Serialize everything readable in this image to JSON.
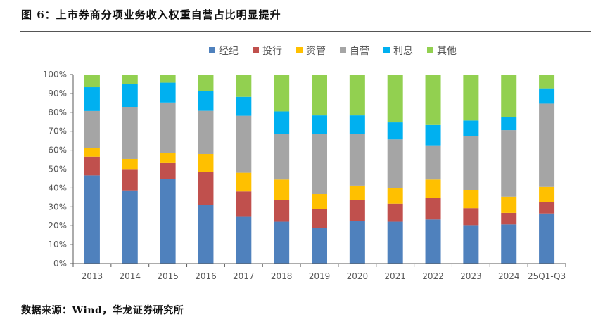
{
  "figure": {
    "title": "图 6：上市券商分项业务收入权重自营占比明显提升",
    "source": "数据来源：Wind，华龙证券研究所"
  },
  "chart_data": {
    "type": "bar",
    "stacked": true,
    "percent": true,
    "title": "",
    "xlabel": "",
    "ylabel": "",
    "ylim": [
      0,
      100
    ],
    "yticks": [
      "0%",
      "10%",
      "20%",
      "30%",
      "40%",
      "50%",
      "60%",
      "70%",
      "80%",
      "90%",
      "100%"
    ],
    "grid": false,
    "legend_position": "top-center",
    "categories": [
      "2013",
      "2014",
      "2015",
      "2016",
      "2017",
      "2018",
      "2019",
      "2020",
      "2021",
      "2022",
      "2023",
      "2024",
      "25Q1-Q3"
    ],
    "series": [
      {
        "name": "经纪",
        "color": "#4f81bd",
        "values": [
          46.7,
          38.4,
          44.7,
          31.1,
          24.7,
          22.1,
          18.7,
          22.6,
          22.1,
          23.3,
          20.3,
          20.7,
          26.5
        ]
      },
      {
        "name": "投行",
        "color": "#c0504d",
        "values": [
          9.9,
          11.3,
          8.5,
          17.6,
          13.5,
          11.7,
          10.3,
          11.1,
          9.6,
          11.6,
          9.0,
          6.1,
          6.0
        ]
      },
      {
        "name": "资管",
        "color": "#ffc000",
        "values": [
          4.7,
          5.7,
          5.4,
          9.3,
          9.9,
          10.7,
          7.8,
          7.6,
          8.1,
          9.6,
          9.4,
          8.6,
          8.1
        ]
      },
      {
        "name": "自营",
        "color": "#a5a5a5",
        "values": [
          19.4,
          27.5,
          26.6,
          22.8,
          30.1,
          24.2,
          31.6,
          27.2,
          25.9,
          17.7,
          28.6,
          35.2,
          44.0
        ]
      },
      {
        "name": "利息",
        "color": "#00b0f0",
        "values": [
          12.6,
          11.9,
          10.5,
          10.6,
          10.0,
          11.8,
          10.0,
          9.9,
          9.0,
          11.1,
          8.4,
          7.1,
          8.1
        ]
      },
      {
        "name": "其他",
        "color": "#92d050",
        "values": [
          6.7,
          5.2,
          4.3,
          8.6,
          11.8,
          19.5,
          21.6,
          21.6,
          25.3,
          26.7,
          24.3,
          22.3,
          7.3
        ]
      }
    ]
  }
}
